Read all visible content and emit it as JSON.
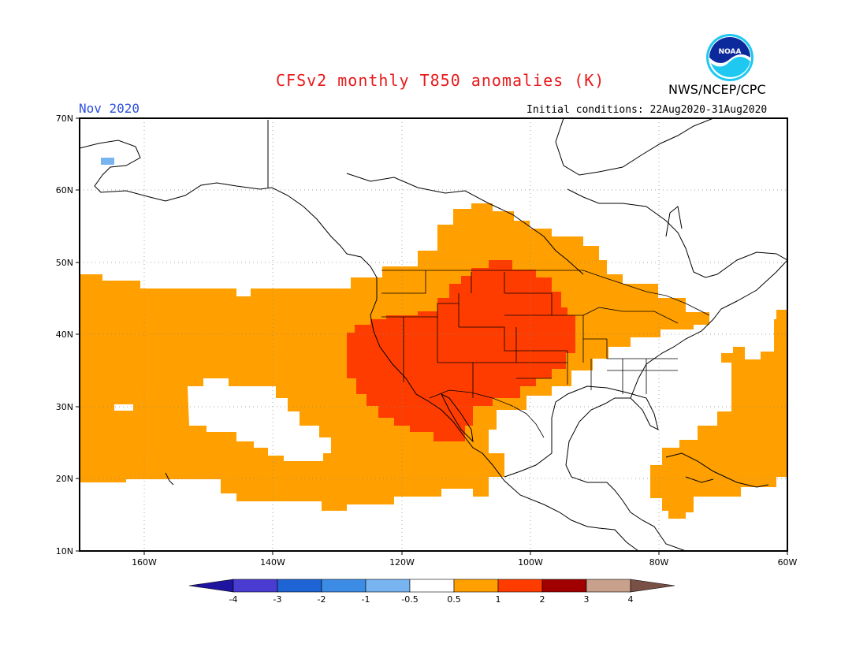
{
  "title": "CFSv2 monthly T850 anomalies (K)",
  "agency": "NWS/NCEP/CPC",
  "month_label": "Nov 2020",
  "initial_conditions": "Initial conditions: 22Aug2020-31Aug2020",
  "logo_text": "NOAA",
  "lat_labels": [
    "70N",
    "60N",
    "50N",
    "40N",
    "30N",
    "20N",
    "10N"
  ],
  "lon_labels": [
    "160W",
    "140W",
    "120W",
    "100W",
    "80W",
    "60W"
  ],
  "legend": {
    "colors": [
      "#1e14a0",
      "#4a3cd0",
      "#1e64d4",
      "#3c8ce6",
      "#78b4f0",
      "#ffffff",
      "#ffa000",
      "#ff3c00",
      "#a00000",
      "#c8a08c",
      "#785046"
    ],
    "labels": [
      "-4",
      "-3",
      "-2",
      "-1",
      "-0.5",
      "0.5",
      "1",
      "2",
      "3",
      "4"
    ]
  },
  "colors": {
    "anomaly_0_5_1": "#ffa000",
    "anomaly_1_2": "#ff3c00",
    "anomaly_neg_0_5_neg_1": "#78b4f0"
  }
}
